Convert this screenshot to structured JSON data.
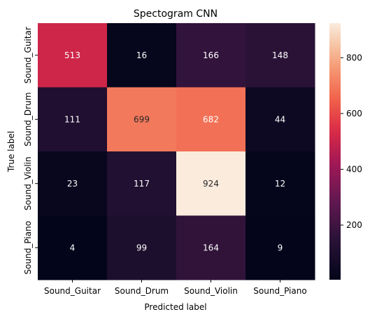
{
  "chart_data": {
    "type": "heatmap",
    "title": "Spectogram CNN",
    "xlabel": "Predicted label",
    "ylabel": "True label",
    "x_categories": [
      "Sound_Guitar",
      "Sound_Drum",
      "Sound_Violin",
      "Sound_Piano"
    ],
    "y_categories": [
      "Sound_Guitar",
      "Sound_Drum",
      "Sound_Violin",
      "Sound_Piano"
    ],
    "values": [
      [
        513,
        16,
        166,
        148
      ],
      [
        111,
        699,
        682,
        44
      ],
      [
        23,
        117,
        924,
        12
      ],
      [
        4,
        99,
        164,
        9
      ]
    ],
    "colormap": "rocket",
    "colorbar": {
      "ticks": [
        200,
        400,
        600,
        800
      ],
      "range": [
        4,
        924
      ]
    }
  }
}
